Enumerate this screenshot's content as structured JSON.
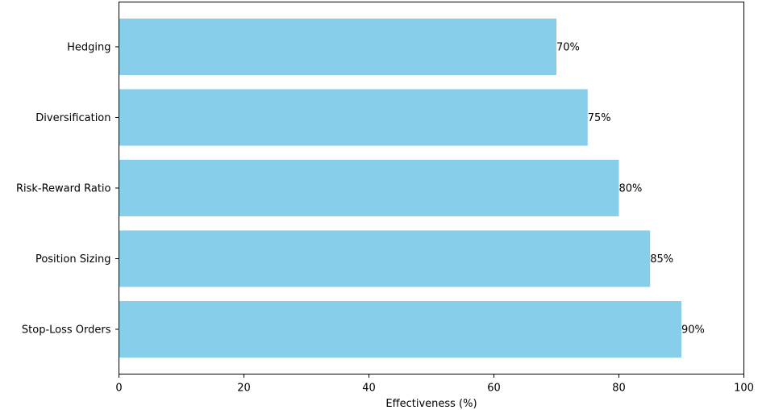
{
  "chart_data": {
    "type": "bar",
    "orientation": "horizontal",
    "categories": [
      "Stop-Loss Orders",
      "Position Sizing",
      "Risk-Reward Ratio",
      "Diversification",
      "Hedging"
    ],
    "values": [
      90,
      85,
      80,
      75,
      70
    ],
    "value_labels": [
      "90%",
      "85%",
      "80%",
      "75%",
      "70%"
    ],
    "title": "",
    "xlabel": "Effectiveness (%)",
    "ylabel": "",
    "xlim": [
      0,
      100
    ],
    "xticks": [
      "0",
      "20",
      "40",
      "60",
      "80",
      "100"
    ],
    "grid": false,
    "bar_color": "#87CEEB"
  }
}
